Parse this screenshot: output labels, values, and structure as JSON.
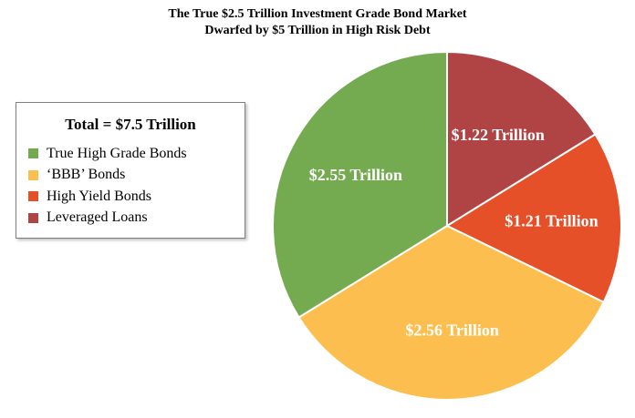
{
  "chart_data": {
    "type": "pie",
    "title": "The True $2.5 Trillion Investment Grade Bond Market",
    "subtitle": "Dwarfed by $5 Trillion in High Risk Debt",
    "legend_title": "Total = $7.5 Trillion",
    "legend_position": "left",
    "slices": [
      {
        "name": "Leveraged Loans",
        "value": 1.22,
        "label": "$1.22 Trillion",
        "color": "#b04445"
      },
      {
        "name": "High Yield Bonds",
        "value": 1.21,
        "label": "$1.21 Trillion",
        "color": "#e65028"
      },
      {
        "name": "‘BBB’ Bonds",
        "value": 2.56,
        "label": "$2.56 Trillion",
        "color": "#fcbf4f"
      },
      {
        "name": "True High Grade Bonds",
        "value": 2.55,
        "label": "$2.55 Trillion",
        "color": "#74aa50"
      }
    ],
    "legend_order": [
      "True High Grade Bonds",
      "‘BBB’ Bonds",
      "High Yield Bonds",
      "Leveraged Loans"
    ]
  }
}
